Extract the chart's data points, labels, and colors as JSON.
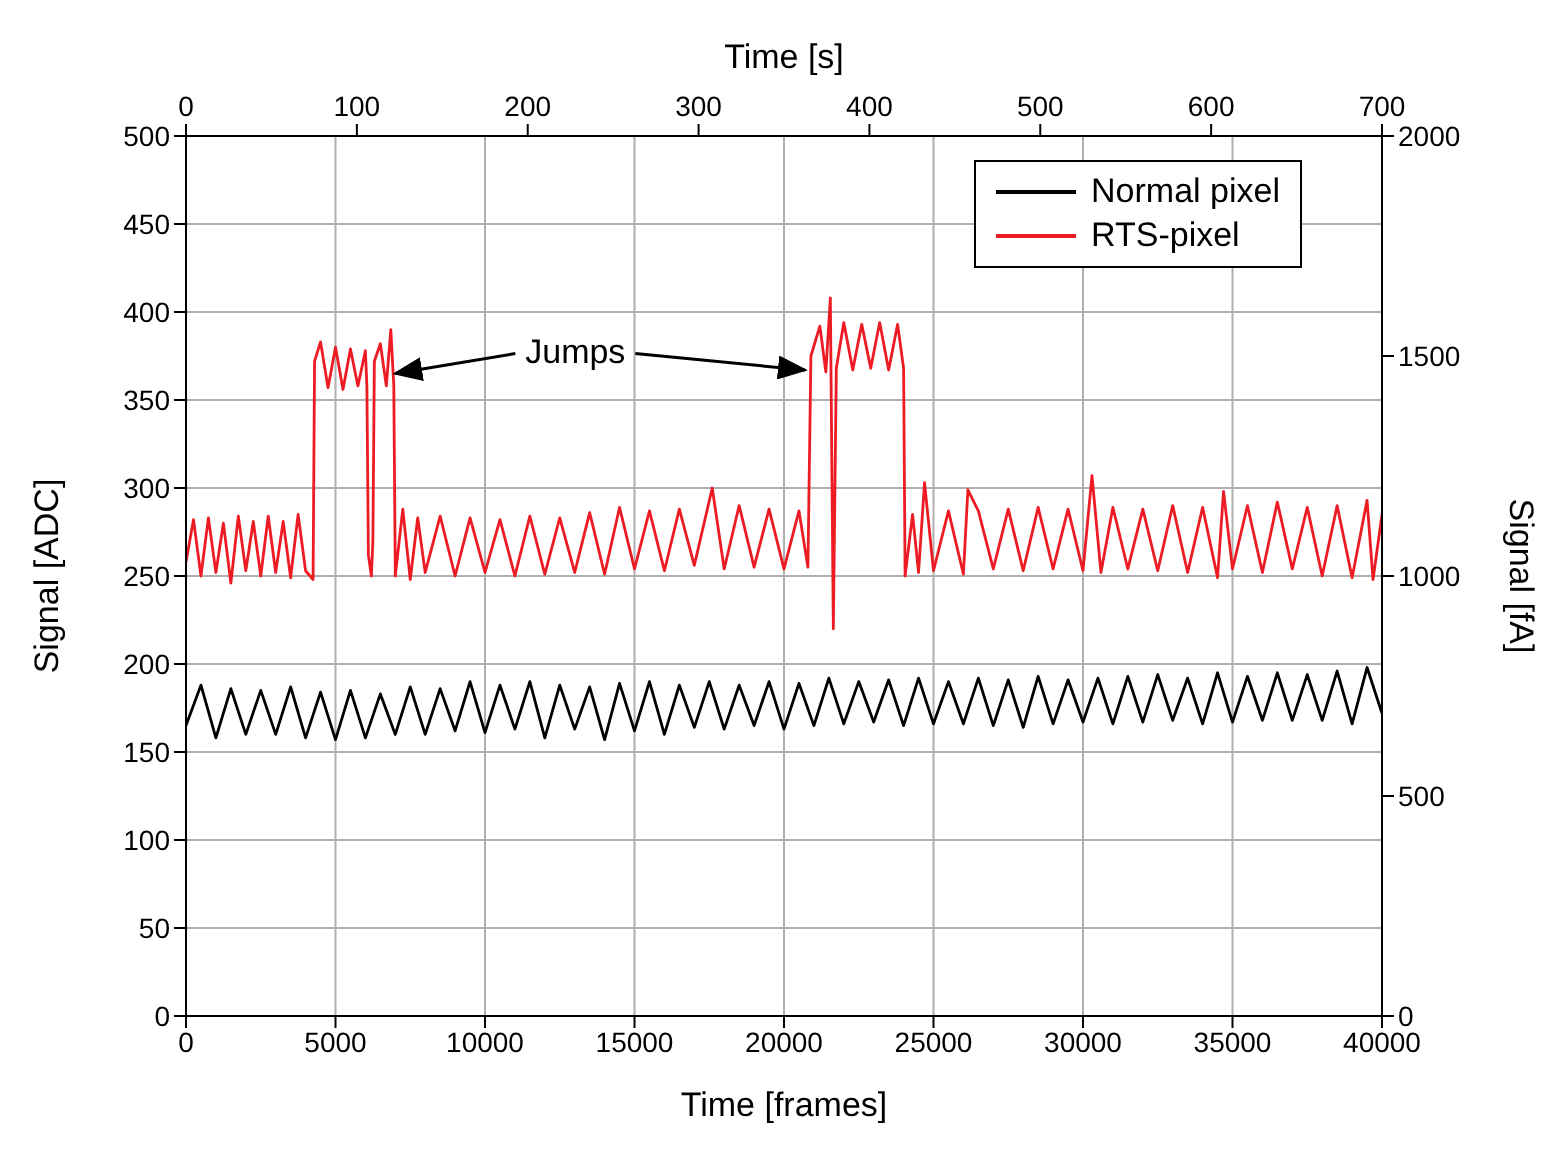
{
  "chart_data": {
    "type": "line",
    "xlabel": "Time [frames]",
    "ylabel": "Signal [ADC]",
    "x2label": "Time [s]",
    "y2label": "Signal [fA]",
    "xlim": [
      0,
      40000
    ],
    "xticks": [
      0,
      5000,
      10000,
      15000,
      20000,
      25000,
      30000,
      35000,
      40000
    ],
    "x2lim": [
      0,
      700
    ],
    "x2ticks": [
      0,
      100,
      200,
      300,
      400,
      500,
      600,
      700
    ],
    "ylim": [
      0,
      500
    ],
    "yticks": [
      0,
      50,
      100,
      150,
      200,
      250,
      300,
      350,
      400,
      450,
      500
    ],
    "y2lim": [
      0,
      2000
    ],
    "y2ticks": [
      0,
      500,
      1000,
      1500,
      2000
    ],
    "grid": true,
    "legend": "top right",
    "marker": "none",
    "line_style": "solid",
    "annotations": [
      {
        "text": "Jumps",
        "x": 7000,
        "y": 365
      }
    ],
    "series": [
      {
        "name": "Normal pixel",
        "color": "#000000",
        "x": [
          0,
          500,
          1000,
          1500,
          2000,
          2500,
          3000,
          3500,
          4000,
          4500,
          5000,
          5500,
          6000,
          6500,
          7000,
          7500,
          8000,
          8500,
          9000,
          9500,
          10000,
          10500,
          11000,
          11500,
          12000,
          12500,
          13000,
          13500,
          14000,
          14500,
          15000,
          15500,
          16000,
          16500,
          17000,
          17500,
          18000,
          18500,
          19000,
          19500,
          20000,
          20500,
          21000,
          21500,
          22000,
          22500,
          23000,
          23500,
          24000,
          24500,
          25000,
          25500,
          26000,
          26500,
          27000,
          27500,
          28000,
          28500,
          29000,
          29500,
          30000,
          30500,
          31000,
          31500,
          32000,
          32500,
          33000,
          33500,
          34000,
          34500,
          35000,
          35500,
          36000,
          36500,
          37000,
          37500,
          38000,
          38500,
          39000,
          39500,
          40000
        ],
        "values": [
          165,
          188,
          158,
          186,
          160,
          185,
          160,
          187,
          158,
          184,
          157,
          185,
          158,
          183,
          160,
          187,
          160,
          186,
          162,
          190,
          161,
          188,
          163,
          190,
          158,
          188,
          163,
          187,
          157,
          189,
          162,
          190,
          160,
          188,
          164,
          190,
          163,
          188,
          165,
          190,
          163,
          189,
          165,
          192,
          166,
          190,
          167,
          191,
          165,
          192,
          166,
          190,
          166,
          192,
          165,
          191,
          164,
          193,
          166,
          191,
          167,
          192,
          166,
          193,
          167,
          194,
          168,
          192,
          166,
          195,
          167,
          193,
          168,
          195,
          168,
          194,
          168,
          196,
          166,
          198,
          172
        ]
      },
      {
        "name": "RTS-pixel",
        "color": "#ed1c24",
        "x": [
          0,
          250,
          500,
          750,
          1000,
          1250,
          1500,
          1750,
          2000,
          2250,
          2500,
          2750,
          3000,
          3250,
          3500,
          3750,
          4000,
          4250,
          4300,
          4500,
          4750,
          5000,
          5250,
          5500,
          5750,
          6000,
          6050,
          6100,
          6200,
          6250,
          6300,
          6500,
          6700,
          6850,
          6950,
          7000,
          7250,
          7500,
          7750,
          8000,
          8500,
          9000,
          9500,
          10000,
          10500,
          11000,
          11500,
          12000,
          12500,
          13000,
          13500,
          14000,
          14500,
          15000,
          15500,
          16000,
          16500,
          17000,
          17600,
          18000,
          18500,
          19000,
          19500,
          20000,
          20500,
          20800,
          20900,
          21200,
          21400,
          21550,
          21650,
          21750,
          22000,
          22300,
          22600,
          22900,
          23200,
          23500,
          23800,
          24000,
          24050,
          24300,
          24500,
          24700,
          25000,
          25500,
          26000,
          26150,
          26500,
          27000,
          27500,
          28000,
          28500,
          29000,
          29500,
          30000,
          30300,
          30600,
          31000,
          31500,
          32000,
          32500,
          33000,
          33500,
          34000,
          34500,
          34700,
          35000,
          35500,
          36000,
          36500,
          37000,
          37500,
          38000,
          38500,
          39000,
          39500,
          39700,
          40000
        ],
        "values": [
          258,
          282,
          250,
          283,
          252,
          280,
          246,
          284,
          253,
          281,
          250,
          284,
          252,
          281,
          249,
          285,
          253,
          248,
          372,
          383,
          357,
          380,
          356,
          379,
          358,
          378,
          358,
          262,
          250,
          270,
          372,
          382,
          358,
          390,
          358,
          250,
          288,
          248,
          283,
          252,
          284,
          250,
          283,
          252,
          282,
          250,
          284,
          251,
          283,
          252,
          286,
          251,
          289,
          254,
          287,
          253,
          288,
          256,
          300,
          254,
          290,
          255,
          288,
          254,
          287,
          255,
          375,
          392,
          366,
          408,
          220,
          368,
          394,
          367,
          393,
          368,
          394,
          367,
          393,
          368,
          250,
          285,
          252,
          303,
          253,
          287,
          251,
          299,
          287,
          254,
          288,
          253,
          289,
          254,
          288,
          253,
          307,
          252,
          289,
          254,
          288,
          253,
          290,
          252,
          289,
          249,
          298,
          254,
          290,
          252,
          292,
          254,
          289,
          250,
          290,
          249,
          293,
          248,
          285
        ]
      }
    ]
  }
}
